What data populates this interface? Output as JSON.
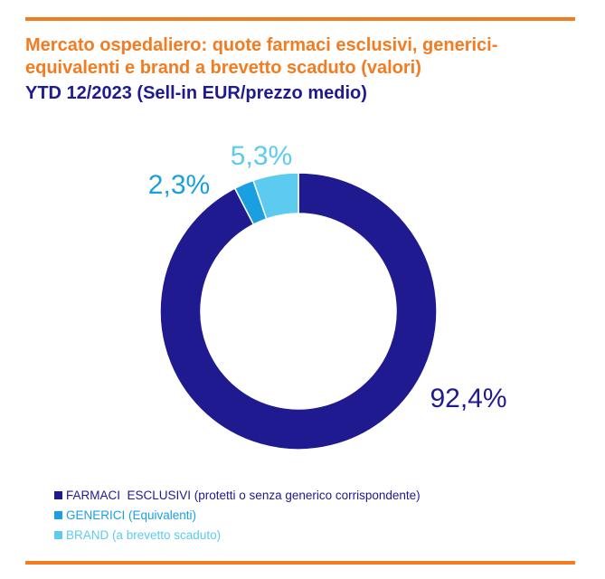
{
  "header": {
    "title": "Mercato ospedaliero: quote farmaci esclusivi, generici-equivalenti e brand a brevetto scaduto (valori)",
    "subtitle": "YTD 12/2023 (Sell-in EUR/prezzo medio)"
  },
  "colors": {
    "accent": "#f47b20",
    "title": "#f47b20",
    "subtitle": "#1f1a8f",
    "rule": "#f47b20"
  },
  "chart_data": {
    "type": "pie",
    "style": "donut",
    "title": "Mercato ospedaliero: quote farmaci esclusivi, generici-equivalenti e brand a brevetto scaduto (valori)",
    "subtitle": "YTD 12/2023 (Sell-in EUR/prezzo medio)",
    "unit": "%",
    "legend_position": "bottom-left",
    "slices": [
      {
        "name": "FARMACI  ESCLUSIVI (protetti o senza generico corrispondente)",
        "value": 92.4,
        "label": "92,4%",
        "color": "#1f1a8f"
      },
      {
        "name": "GENERICI (Equivalenti)",
        "value": 2.3,
        "label": "2,3%",
        "color": "#1a9fe0"
      },
      {
        "name": "BRAND (a brevetto scaduto)",
        "value": 5.3,
        "label": "5,3%",
        "color": "#5ccbef"
      }
    ]
  }
}
